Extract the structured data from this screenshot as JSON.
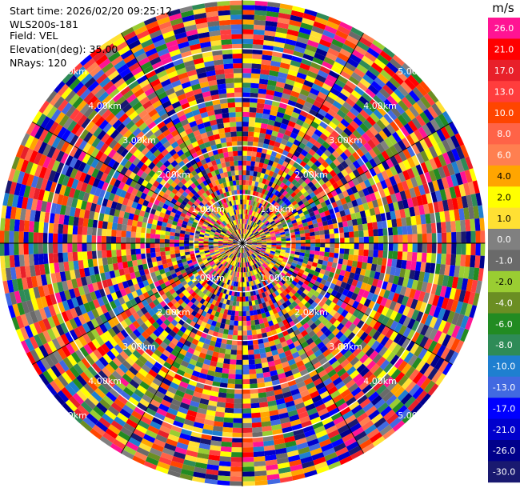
{
  "header": {
    "start_time": "Start time: 2026/02/20 09:25:12",
    "instrument": "WLS200s-181",
    "field": "Field: VEL",
    "elevation": "Elevation(deg): 35.00",
    "nrays": "NRays: 120"
  },
  "chart_data": {
    "type": "heatmap",
    "projection": "polar-ppi",
    "field": "VEL",
    "units": "m/s",
    "nrays": 120,
    "range_rings_km": [
      1.0,
      2.0,
      3.0,
      4.0,
      5.0
    ],
    "ring_labels": [
      "1.00km",
      "2.00km",
      "3.00km",
      "4.00km",
      "5.00km"
    ],
    "max_range_km": 5.0,
    "colorbar": {
      "label": "m/s",
      "ticks": [
        "26.0",
        "21.0",
        "17.0",
        "13.0",
        "10.0",
        "8.0",
        "6.0",
        "4.0",
        "2.0",
        "1.0",
        "0.0",
        "-1.0",
        "-2.0",
        "-4.0",
        "-6.0",
        "-8.0",
        "-10.0",
        "-13.0",
        "-17.0",
        "-21.0",
        "-26.0",
        "-30.0"
      ],
      "colors": [
        "#ff1493",
        "#ff0000",
        "#e8202a",
        "#ff3d3d",
        "#ff4500",
        "#ff6347",
        "#ff7f50",
        "#ffa500",
        "#ffff00",
        "#ffe033",
        "#808080",
        "#6a6a6a",
        "#9acd32",
        "#6b8e23",
        "#228b22",
        "#2e8b57",
        "#1e7fd0",
        "#4169e1",
        "#0000ff",
        "#0000cd",
        "#00008b",
        "#191970"
      ]
    }
  }
}
